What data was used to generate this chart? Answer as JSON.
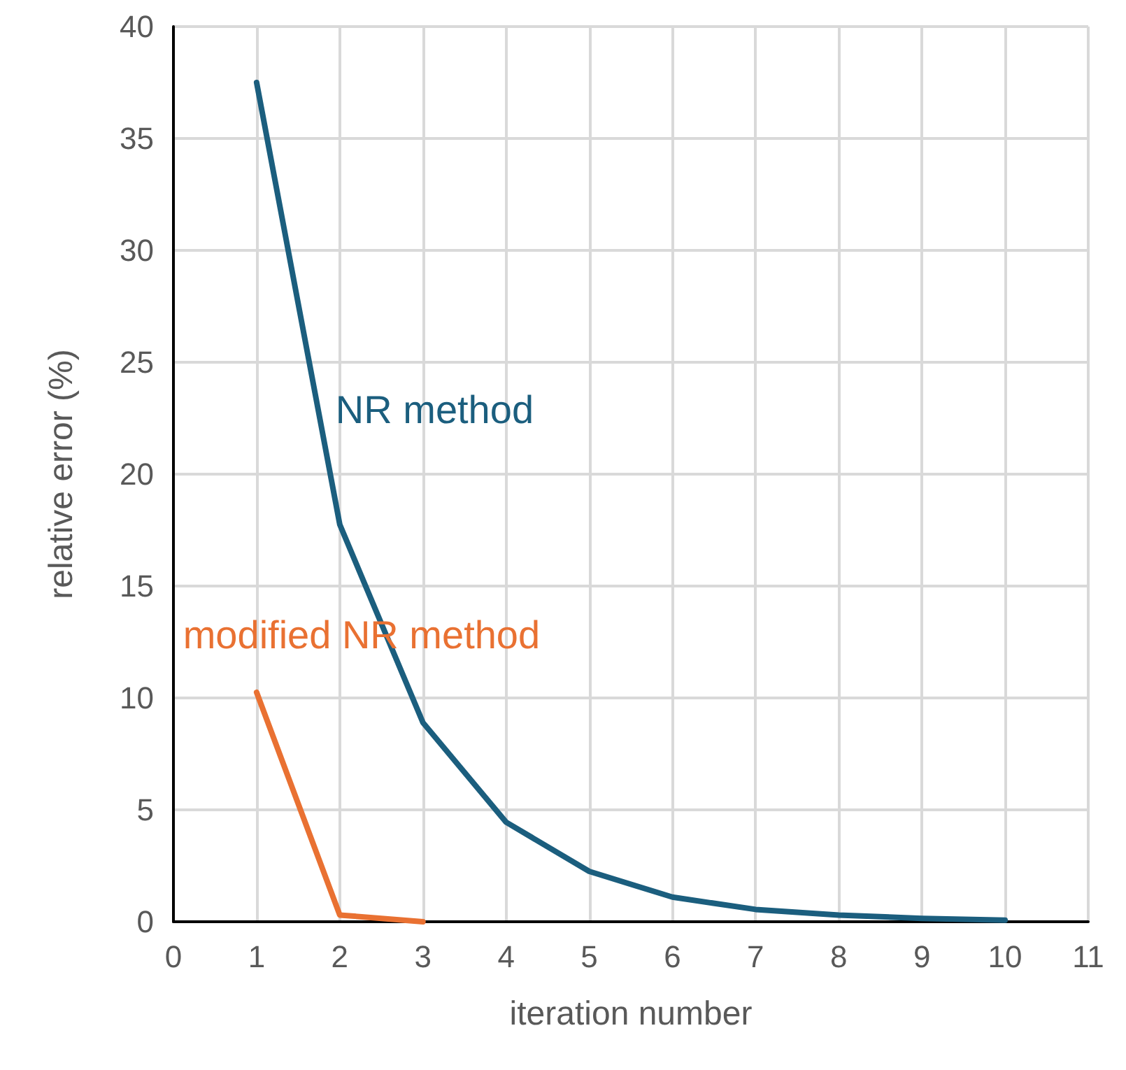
{
  "chart_data": {
    "type": "line",
    "xlabel": "iteration number",
    "ylabel": "relative error (%)",
    "x": [
      1,
      2,
      3,
      4,
      5,
      6,
      7,
      8,
      9,
      10
    ],
    "series": [
      {
        "name": "NR method",
        "color": "#1b5e7e",
        "values": [
          37.5,
          17.75,
          8.9,
          4.45,
          2.25,
          1.1,
          0.55,
          0.3,
          0.15,
          0.07
        ]
      },
      {
        "name": "modified NR method",
        "color": "#e97132",
        "x": [
          1,
          2,
          3
        ],
        "values": [
          10.25,
          0.3,
          0
        ]
      }
    ],
    "xlim": [
      0,
      11
    ],
    "xticks": [
      0,
      1,
      2,
      3,
      4,
      5,
      6,
      7,
      8,
      9,
      10,
      11
    ],
    "ylim": [
      0,
      40
    ],
    "yticks": [
      0,
      5,
      10,
      15,
      20,
      25,
      30,
      35,
      40
    ],
    "grid": true,
    "legend": false,
    "marker": "none",
    "line_style": "solid"
  }
}
